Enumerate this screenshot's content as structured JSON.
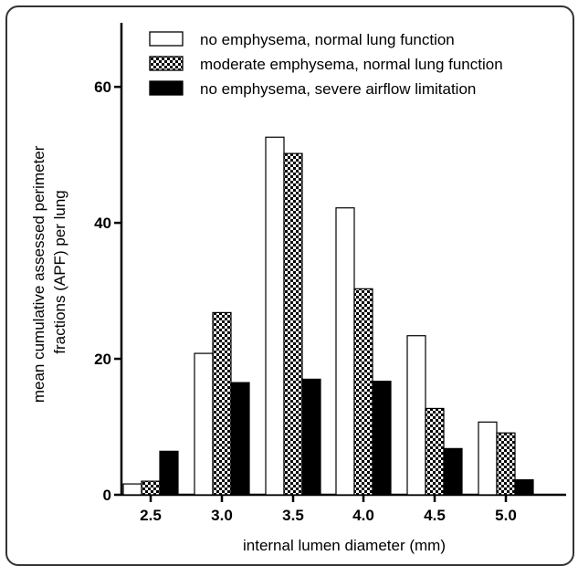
{
  "chart_data": {
    "type": "bar",
    "title": "",
    "xlabel": "internal lumen diameter (mm)",
    "ylabel_lines": [
      "mean cumulative assessed perimeter",
      "fractions (APF) per lung"
    ],
    "categories": [
      "2.5",
      "3.0",
      "3.5",
      "4.0",
      "4.5",
      "5.0"
    ],
    "yticks": [
      0,
      20,
      40,
      60
    ],
    "ylim": [
      0,
      70
    ],
    "grid": false,
    "legend_position": "top-right",
    "series": [
      {
        "name": "no emphysema, normal lung function",
        "fill": "open",
        "values": [
          1.6,
          20.8,
          52.6,
          42.2,
          23.4,
          10.7
        ]
      },
      {
        "name": "moderate emphysema, normal lung function",
        "fill": "checkered",
        "values": [
          2.0,
          26.8,
          50.2,
          30.3,
          12.7,
          9.1
        ]
      },
      {
        "name": "no emphysema, severe airflow limitation",
        "fill": "solid",
        "values": [
          6.4,
          16.5,
          17.0,
          16.7,
          6.8,
          2.2
        ]
      }
    ],
    "colors": {
      "stroke": "#000000",
      "open": "#ffffff",
      "solid": "#000000"
    }
  }
}
